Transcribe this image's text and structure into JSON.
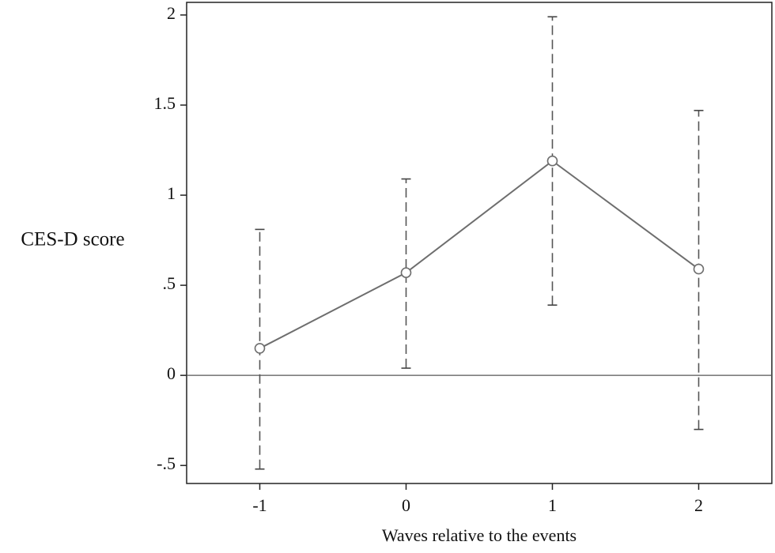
{
  "chart_data": {
    "type": "line",
    "x_label": "Waves relative to the events",
    "y_label": "CES-D score",
    "xlim": [
      -1.5,
      2.5
    ],
    "xticks": [
      -1,
      0,
      1,
      2
    ],
    "ylim": [
      -0.6,
      2.07
    ],
    "yticks": [
      {
        "value": -0.5,
        "label": "-.5"
      },
      0,
      {
        "value": 0.5,
        "label": ".5"
      },
      1,
      1.5,
      2
    ],
    "reference_line": 0,
    "series": [
      {
        "color": "#6e6e6e",
        "x": [
          -1,
          0,
          1,
          2
        ],
        "values": [
          0.15,
          0.57,
          1.19,
          0.59
        ],
        "lower": [
          -0.52,
          0.04,
          0.39,
          -0.3
        ],
        "upper": [
          0.81,
          1.09,
          1.99,
          1.47
        ]
      }
    ]
  }
}
